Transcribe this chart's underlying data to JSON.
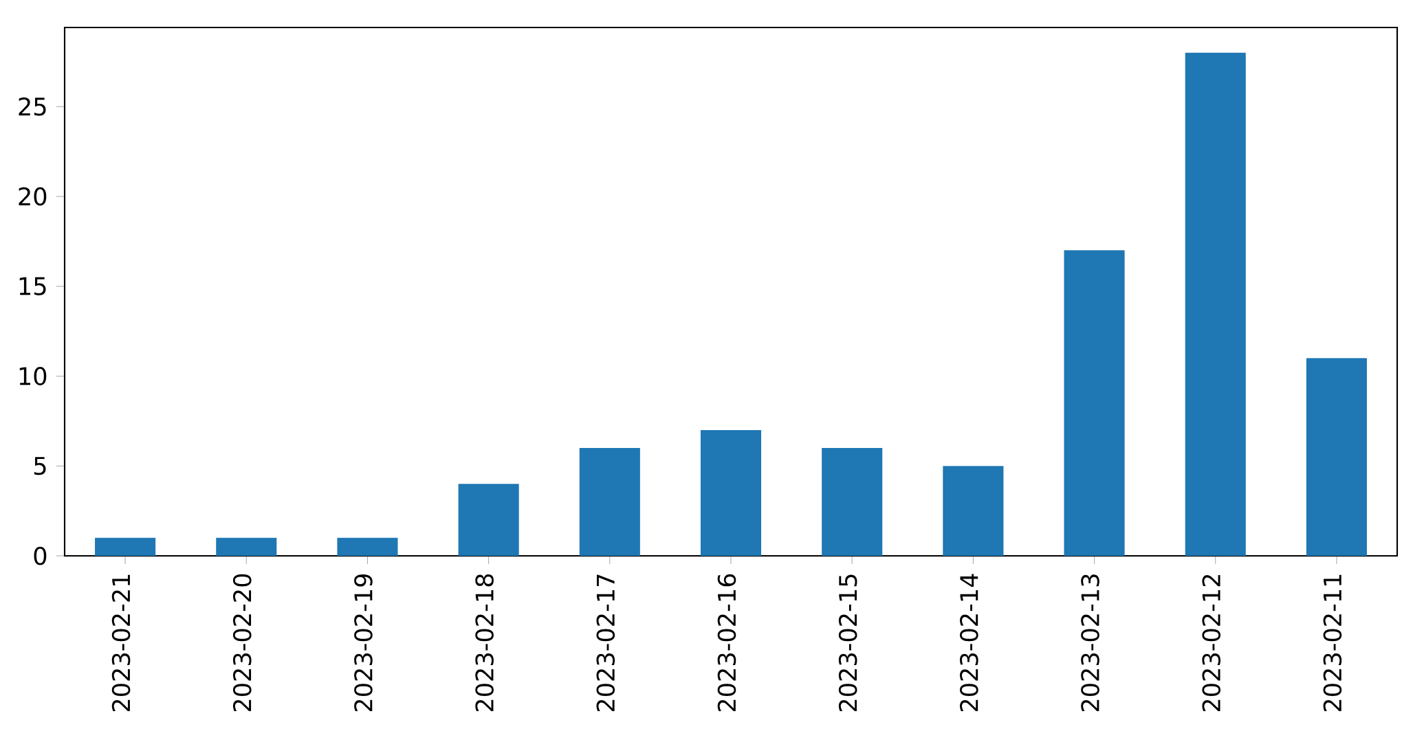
{
  "chart_data": {
    "type": "bar",
    "categories": [
      "2023-02-21",
      "2023-02-20",
      "2023-02-19",
      "2023-02-18",
      "2023-02-17",
      "2023-02-16",
      "2023-02-15",
      "2023-02-14",
      "2023-02-13",
      "2023-02-12",
      "2023-02-11"
    ],
    "values": [
      1,
      1,
      1,
      4,
      6,
      7,
      6,
      5,
      17,
      28,
      11
    ],
    "color": "#1f77b4",
    "ylim": [
      0,
      29.4
    ],
    "yticks": [
      0,
      5,
      10,
      15,
      20,
      25
    ]
  }
}
